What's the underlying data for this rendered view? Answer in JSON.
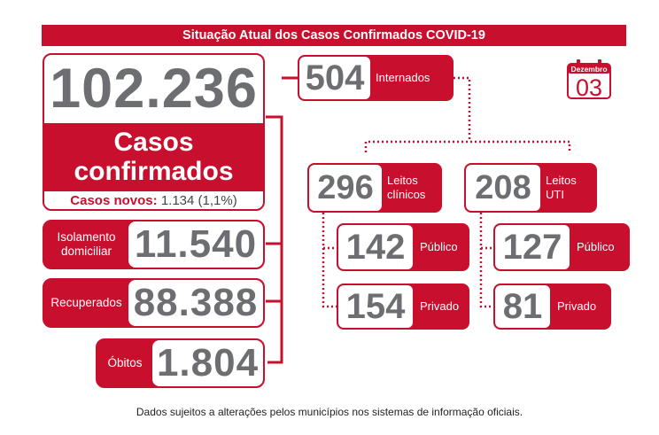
{
  "header": {
    "title": "Situação Atual dos Casos Confirmados COVID-19"
  },
  "calendar": {
    "month": "Dezembro",
    "day": "03"
  },
  "total": {
    "value": "102.236",
    "label_line1": "Casos",
    "label_line2": "confirmados",
    "new_label": "Casos novos:",
    "new_value": "1.134 (1,1%)"
  },
  "isolation": {
    "label_line1": "Isolamento",
    "label_line2": "domiciliar",
    "value": "11.540"
  },
  "recovered": {
    "label": "Recuperados",
    "value": "88.388"
  },
  "deaths": {
    "label": "Óbitos",
    "value": "1.804"
  },
  "hospitalized": {
    "value": "504",
    "label": "Internados"
  },
  "clinical": {
    "value": "296",
    "label_line1": "Leitos",
    "label_line2": "clínicos",
    "public": {
      "value": "142",
      "label": "Público"
    },
    "private": {
      "value": "154",
      "label": "Privado"
    }
  },
  "icu": {
    "value": "208",
    "label_line1": "Leitos",
    "label_line2": "UTI",
    "public": {
      "value": "127",
      "label": "Público"
    },
    "private": {
      "value": "81",
      "label": "Privado"
    }
  },
  "footer": {
    "note": "Dados sujeitos a alterações pelos municípios nos sistemas de informação oficiais."
  },
  "colors": {
    "accent": "#c8102e",
    "number_gray": "#6d6e71"
  }
}
